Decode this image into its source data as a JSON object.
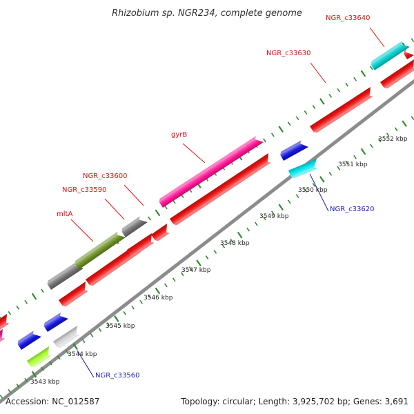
{
  "title": "Rhizobium sp. NGR234, complete genome",
  "footer": {
    "accession": "Accession: NC_012587",
    "summary": "Topology: circular; Length: 3,925,702 bp; Genes: 3,691"
  },
  "colors": {
    "backbone": "#8c8c8c",
    "tick": "#2e8b2e",
    "label_top": "#dd1111",
    "label_bottom": "#1a1aaa"
  },
  "ticks": [
    {
      "label": "3543 kbp"
    },
    {
      "label": "3544 kbp"
    },
    {
      "label": "3545 kbp"
    },
    {
      "label": "3546 kbp"
    },
    {
      "label": "3547 kbp"
    },
    {
      "label": "3548 kbp"
    },
    {
      "label": "3549 kbp"
    },
    {
      "label": "3550 kbp"
    },
    {
      "label": "3551 kbp"
    },
    {
      "label": "3552 kbp"
    }
  ],
  "genes": [
    {
      "color": "#ee1111"
    },
    {
      "color": "#e01b8a"
    },
    {
      "color": "#1515dd"
    },
    {
      "color": "#aaff33"
    },
    {
      "color": "#1515dd"
    },
    {
      "color": "#d4d4d4"
    },
    {
      "color": "#ee1111"
    },
    {
      "color": "#707070"
    },
    {
      "color": "#6b8e23"
    },
    {
      "color": "#ee1111"
    },
    {
      "color": "#707070"
    },
    {
      "color": "#ee1111"
    },
    {
      "color": "#ee1111"
    },
    {
      "color": "#ee1111"
    },
    {
      "color": "#ff1493"
    },
    {
      "color": "#ee1111"
    },
    {
      "color": "#1515dd"
    },
    {
      "color": "#00e5ee"
    },
    {
      "color": "#ee1111"
    },
    {
      "color": "#ee1111"
    },
    {
      "color": "#00cccc"
    }
  ],
  "labels": [
    {
      "text": "NGR_c33640"
    },
    {
      "text": "NGR_c33630"
    },
    {
      "text": "gyrB"
    },
    {
      "text": "NGR_c33600"
    },
    {
      "text": "NGR_c33590"
    },
    {
      "text": "mltA"
    },
    {
      "text": "NGR_c33620"
    },
    {
      "text": "NGR_c33560"
    }
  ]
}
